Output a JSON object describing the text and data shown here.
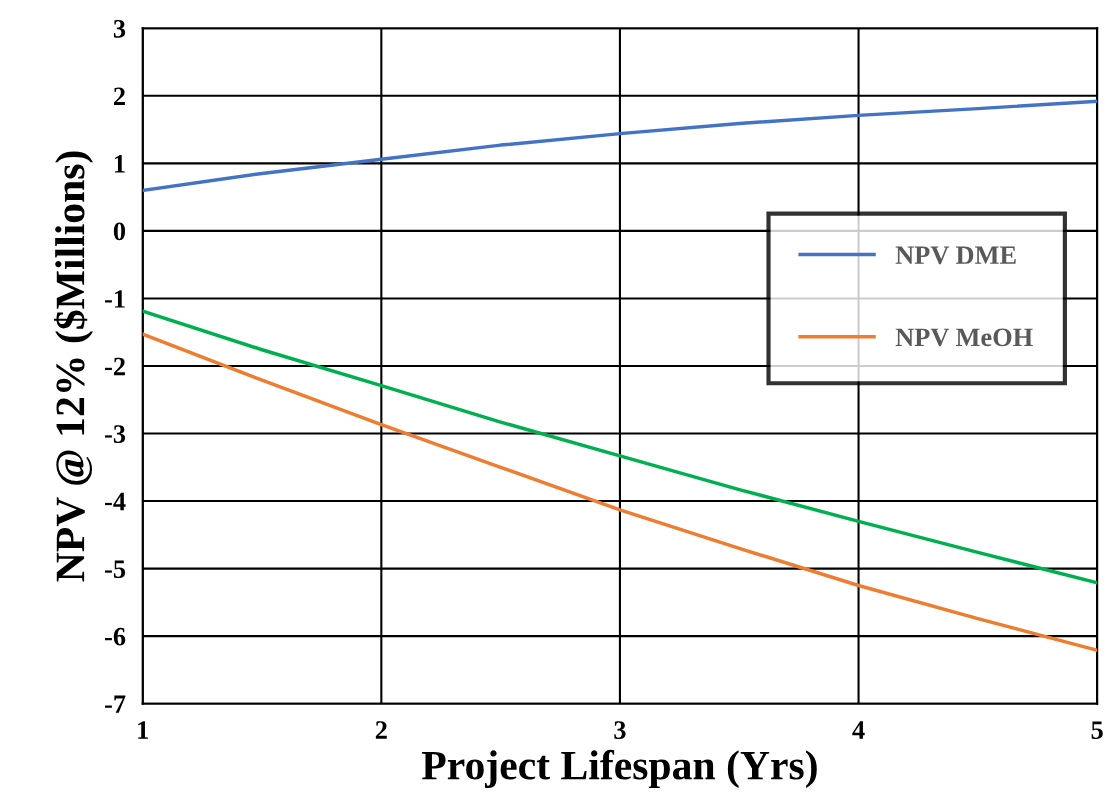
{
  "chart_data": {
    "type": "line",
    "xlabel": "Project Lifespan (Yrs)",
    "ylabel": "NPV @ 12% ($Millions)",
    "x": [
      1,
      1.5,
      2,
      2.5,
      3,
      3.5,
      4,
      4.5,
      5
    ],
    "series": [
      {
        "name": "NPV DME",
        "color": "#4472c4",
        "values": [
          0.6,
          0.85,
          1.06,
          1.27,
          1.44,
          1.59,
          1.71,
          1.81,
          1.92
        ]
      },
      {
        "name": "NPV MeOH",
        "color": "#ed7d31",
        "values": [
          -1.53,
          -2.21,
          -2.87,
          -3.5,
          -4.13,
          -4.7,
          -5.25,
          -5.74,
          -6.21
        ]
      },
      {
        "color": "#00b050",
        "values": [
          -1.19,
          -1.76,
          -2.29,
          -2.83,
          -3.33,
          -3.83,
          -4.3,
          -4.76,
          -5.21
        ]
      }
    ],
    "xlim": [
      1,
      5
    ],
    "xticks": [
      1,
      2,
      3,
      4,
      5
    ],
    "ylim": [
      -7,
      3
    ],
    "yticks": [
      -7,
      -6,
      -5,
      -4,
      -3,
      -2,
      -1,
      0,
      1,
      2,
      3
    ],
    "grid": true,
    "legend": "center right",
    "marker": "none",
    "line_style": "solid"
  }
}
